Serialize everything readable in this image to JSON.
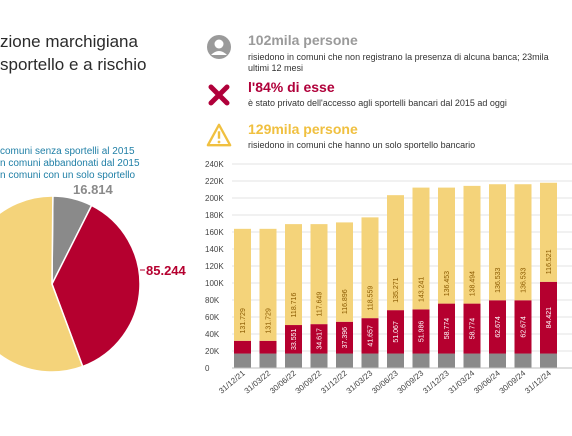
{
  "title_lines": [
    "zione marchigiana",
    "sportello e a rischio"
  ],
  "legend": [
    "comuni senza sportelli al 2015",
    "n comuni abbandonati dal 2015",
    "n comuni con un solo sportello"
  ],
  "pie_labels": {
    "grey": "16.814",
    "red": "85.244"
  },
  "stats": [
    {
      "icon": "person-icon",
      "headline": "102mila persone",
      "body": [
        "risiedono in comuni che non registrano la presenza di alcuna banca; 23mila",
        "ultimi 12 mesi"
      ],
      "color": "#9a9a9a"
    },
    {
      "icon": "cross-icon",
      "headline": "l'84% di esse",
      "body": [
        "è stato privato dell'accesso agli sportelli bancari dal 2015 ad oggi"
      ],
      "color": "#b0003a"
    },
    {
      "icon": "warning-icon",
      "headline": "129mila persone",
      "body": [
        "risiedono in comuni che hanno un solo sportello bancario"
      ],
      "color": "#f0c040"
    }
  ],
  "colors": {
    "grey": "#8a8a8a",
    "red": "#b5002f",
    "yellow": "#f4d37a"
  },
  "chart_data": [
    {
      "type": "pie",
      "labels": [
        "16.814",
        "85.244",
        ""
      ],
      "values": [
        16814,
        85244,
        129000
      ],
      "colors": [
        "#8a8a8a",
        "#b5002f",
        "#f4d37a"
      ]
    },
    {
      "type": "bar",
      "stacked": true,
      "categories": [
        "31/12/21",
        "31/03/22",
        "30/06/22",
        "30/09/22",
        "31/12/22",
        "31/03/23",
        "30/06/23",
        "30/09/23",
        "31/12/23",
        "31/03/24",
        "30/06/24",
        "30/09/24",
        "31/12/24"
      ],
      "series": [
        {
          "values": [
            17000,
            17000,
            17000,
            17000,
            17000,
            17000,
            17000,
            17000,
            17000,
            17000,
            17000,
            17000,
            17000
          ]
        },
        {
          "values": [
            15000,
            15000,
            33551,
            34617,
            37396,
            41657,
            51067,
            51986,
            58774,
            58774,
            62674,
            62674,
            84421
          ]
        },
        {
          "values": [
            131729,
            131729,
            118716,
            117649,
            116896,
            118559,
            135271,
            143241,
            136453,
            138494,
            136533,
            136533,
            116521
          ]
        }
      ],
      "data_labels": {
        "red": [
          "",
          "",
          "33.551",
          "34.617",
          "37.396",
          "41.657",
          "51.067",
          "51.986",
          "58.774",
          "58.774",
          "62.674",
          "62.674",
          "84.421"
        ],
        "yellow": [
          "131.729",
          "131.729",
          "118.716",
          "117.649",
          "116.896",
          "118.559",
          "135.271",
          "143.241",
          "136.453",
          "138.494",
          "136.533",
          "136.533",
          "116.521"
        ]
      },
      "yticks": [
        "0",
        "20K",
        "40K",
        "60K",
        "80K",
        "100K",
        "120K",
        "140K",
        "160K",
        "180K",
        "200K",
        "220K",
        "240K"
      ],
      "ylim": [
        0,
        240000
      ]
    }
  ]
}
